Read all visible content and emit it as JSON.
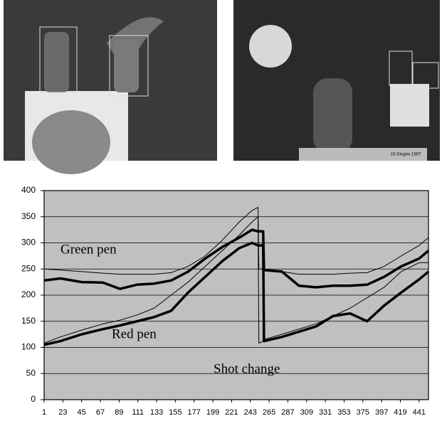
{
  "images": [
    {
      "caption": null
    },
    {
      "caption": "19 Giugno 1997"
    }
  ],
  "chart_data": {
    "type": "line",
    "annotations": [
      "Green pen",
      "Red pen",
      "Shot change"
    ],
    "x": [
      1,
      20,
      45,
      70,
      90,
      110,
      130,
      150,
      170,
      190,
      210,
      230,
      245,
      252,
      253,
      258,
      259,
      280,
      300,
      320,
      340,
      360,
      380,
      400,
      420,
      441,
      452
    ],
    "series": [
      {
        "color": "#000000",
        "width": 1,
        "values": [
          250,
          248,
          245,
          242,
          240,
          240,
          240,
          243,
          255,
          275,
          305,
          340,
          362,
          368,
          250,
          250,
          248,
          245,
          240,
          240,
          240,
          242,
          243,
          255,
          275,
          295,
          310
        ]
      },
      {
        "color": "#000000",
        "width": 3.5,
        "values": [
          228,
          232,
          225,
          224,
          212,
          220,
          222,
          228,
          245,
          270,
          292,
          310,
          325,
          322,
          322,
          322,
          248,
          245,
          218,
          215,
          218,
          218,
          220,
          235,
          255,
          270,
          285
        ]
      },
      {
        "color": "#000000",
        "width": 1,
        "values": [
          108,
          120,
          133,
          145,
          152,
          162,
          175,
          200,
          225,
          255,
          285,
          315,
          340,
          350,
          108,
          112,
          115,
          125,
          135,
          145,
          160,
          175,
          195,
          215,
          245,
          262,
          262
        ]
      },
      {
        "color": "#000000",
        "width": 3.5,
        "values": [
          105,
          112,
          125,
          135,
          142,
          150,
          158,
          170,
          205,
          235,
          265,
          290,
          300,
          295,
          295,
          295,
          112,
          120,
          130,
          140,
          160,
          165,
          150,
          180,
          205,
          230,
          245
        ]
      }
    ],
    "xlim": [
      1,
      452
    ],
    "xticks": [
      1,
      23,
      45,
      67,
      89,
      111,
      133,
      155,
      177,
      199,
      221,
      243,
      265,
      287,
      309,
      331,
      353,
      375,
      397,
      419,
      441
    ],
    "ylim": [
      0,
      400
    ],
    "yticks": [
      0,
      50,
      100,
      150,
      200,
      250,
      300,
      350,
      400
    ],
    "grid": true,
    "background": "#c0c0c0"
  }
}
